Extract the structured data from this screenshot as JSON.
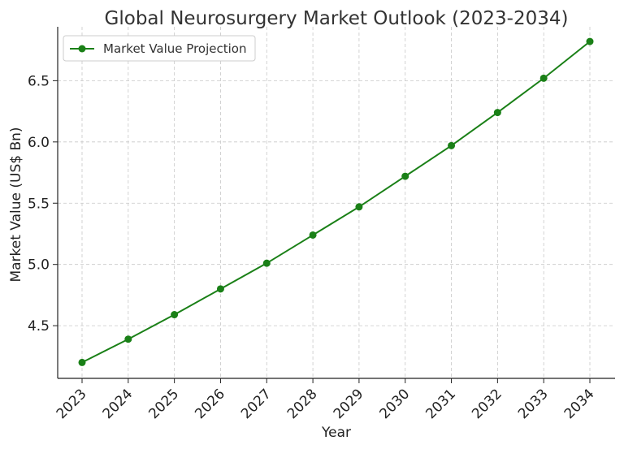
{
  "chart_data": {
    "type": "line",
    "title": "Global Neurosurgery Market Outlook (2023-2034)",
    "xlabel": "Year",
    "ylabel": "Market Value (US$ Bn)",
    "x": [
      "2023",
      "2024",
      "2025",
      "2026",
      "2027",
      "2028",
      "2029",
      "2030",
      "2031",
      "2032",
      "2033",
      "2034"
    ],
    "series": [
      {
        "name": "Market Value Projection",
        "color": "#1a8017",
        "marker": "circle",
        "values": [
          4.2,
          4.39,
          4.59,
          4.8,
          5.01,
          5.24,
          5.47,
          5.72,
          5.97,
          6.24,
          6.52,
          6.82
        ]
      }
    ],
    "ylim": [
      4.07,
      6.94
    ],
    "yticks": [
      "4.5",
      "5.0",
      "5.5",
      "6.0",
      "6.5"
    ],
    "grid": true,
    "legend_position": "top-left"
  }
}
